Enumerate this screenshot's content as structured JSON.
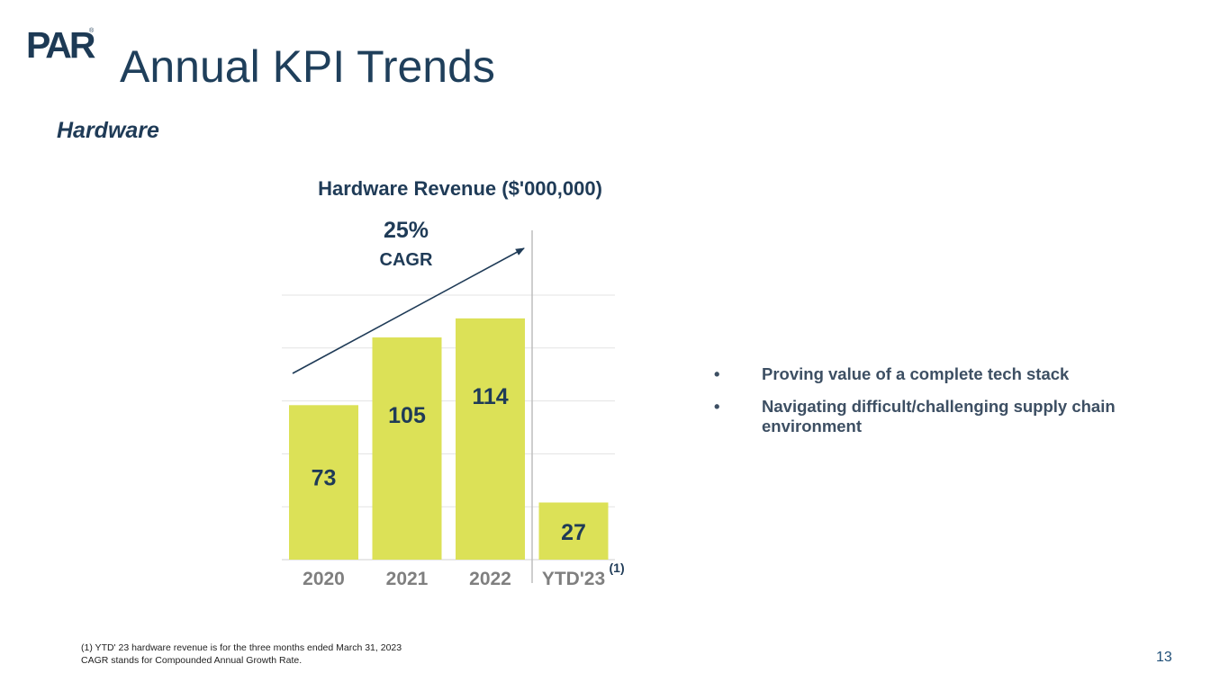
{
  "logo": {
    "text": "PAR",
    "reg": "®"
  },
  "slide": {
    "title": "Annual KPI Trends",
    "subtitle": "Hardware",
    "page_number": "13"
  },
  "chart_data": {
    "type": "bar",
    "title": "Hardware Revenue ($'000,000)",
    "categories": [
      "2020",
      "2021",
      "2022",
      "YTD'23"
    ],
    "values": [
      73,
      105,
      114,
      27
    ],
    "category_notes": [
      "",
      "",
      "",
      "(1)"
    ],
    "ylim": [
      0,
      125
    ],
    "gridlines": [
      25,
      50,
      75,
      100,
      125
    ],
    "grid": true,
    "bar_color": "#dce157",
    "label_color": "#1f3b57",
    "annotation": {
      "value": "25%",
      "label": "CAGR",
      "type": "growth-arrow"
    }
  },
  "bullets": [
    {
      "marker": "•",
      "text": "Proving value of a complete tech stack"
    },
    {
      "marker": "•",
      "text": "Navigating difficult/challenging supply chain environment"
    }
  ],
  "footnotes": [
    "(1) YTD' 23 hardware revenue is for the three months ended March 31, 2023",
    "CAGR stands for Compounded Annual Growth Rate."
  ]
}
